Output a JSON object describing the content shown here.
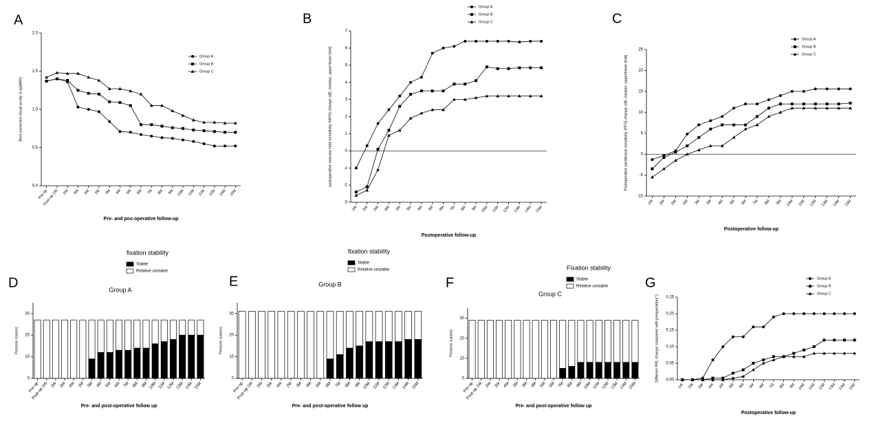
{
  "chart_data": [
    {
      "panel": "A",
      "type": "line",
      "xlabel": "Pre- and pos-operative follow-up",
      "ylabel": "Best corrected visual acuity (LogMAR)",
      "categories": [
        "Pre-op",
        "Post-op 1W",
        "2W",
        "3W",
        "4W",
        "2M",
        "3M",
        "4M",
        "5M",
        "6M",
        "7M",
        "8M",
        "9M",
        "10M",
        "11M",
        "12M",
        "13M",
        "14M",
        "15M"
      ],
      "series": [
        {
          "name": "Group A",
          "color": "#000000",
          "marker": "circle",
          "values": [
            1.37,
            1.4,
            1.36,
            1.03,
            1.0,
            0.97,
            0.84,
            0.71,
            0.7,
            0.67,
            0.65,
            0.63,
            0.62,
            0.6,
            0.58,
            0.55,
            0.52,
            0.52,
            0.52
          ]
        },
        {
          "name": "Group B",
          "color": "#000000",
          "marker": "square",
          "values": [
            1.37,
            1.4,
            1.38,
            1.25,
            1.21,
            1.2,
            1.1,
            1.09,
            1.05,
            0.8,
            0.8,
            0.78,
            0.76,
            0.75,
            0.73,
            0.72,
            0.71,
            0.7,
            0.7
          ]
        },
        {
          "name": "Group C",
          "color": "#000000",
          "marker": "triangle",
          "values": [
            1.42,
            1.48,
            1.47,
            1.47,
            1.42,
            1.38,
            1.27,
            1.27,
            1.24,
            1.2,
            1.05,
            1.05,
            0.98,
            0.92,
            0.86,
            0.83,
            0.83,
            0.82,
            0.82
          ]
        }
      ],
      "ylim": [
        0,
        2
      ],
      "yticks": [
        {
          "value": 0,
          "label": "0.0"
        },
        0.5,
        {
          "value": 1,
          "label": "1.0"
        },
        1.5,
        {
          "value": 2,
          "label": "2.0"
        }
      ]
    },
    {
      "panel": "B",
      "type": "line",
      "xlabel": "Postoperative follow-up",
      "ylabel": "postoperative macular hole sensitivity (MHS) change (dB, median, upper/lower limit)",
      "categories": [
        "1W",
        "2W",
        "3W",
        "4W",
        "2M",
        "3M",
        "4M",
        "5M",
        "6M",
        "7M",
        "8M",
        "9M",
        "10M",
        "11M",
        "12M",
        "13M",
        "14M",
        "15M"
      ],
      "series": [
        {
          "name": "Group A",
          "color": "#000000",
          "marker": "circle",
          "values": [
            -1.0,
            0.3,
            1.6,
            2.4,
            3.2,
            4.0,
            4.3,
            5.7,
            6.0,
            6.1,
            6.4,
            6.4,
            6.4,
            6.4,
            6.4,
            6.35,
            6.4,
            6.4
          ]
        },
        {
          "name": "Group B",
          "color": "#000000",
          "marker": "square",
          "values": [
            -2.4,
            -2.1,
            0.1,
            1.2,
            2.6,
            3.3,
            3.5,
            3.5,
            3.5,
            3.9,
            3.9,
            4.1,
            4.9,
            4.8,
            4.8,
            4.85,
            4.85,
            4.85
          ]
        },
        {
          "name": "Group C",
          "color": "#000000",
          "marker": "triangle",
          "values": [
            -2.6,
            -2.3,
            -1.1,
            0.9,
            1.2,
            1.9,
            2.2,
            2.4,
            2.4,
            3.0,
            3.0,
            3.1,
            3.2,
            3.2,
            3.2,
            3.2,
            3.2,
            3.2
          ]
        }
      ],
      "ylim": [
        -3,
        7
      ],
      "yticks": [
        -3,
        -2,
        -1,
        0,
        1,
        2,
        3,
        4,
        5,
        6,
        7
      ]
    },
    {
      "panel": "C",
      "type": "line",
      "xlabel": "Postoperative follow-up",
      "ylabel": "Postoperative parafoveal sensitivity (PFS) change (dB, median, upper/lower limit)",
      "categories": [
        "1W",
        "2W",
        "3W",
        "4W",
        "2M",
        "3M",
        "4M",
        "5M",
        "6M",
        "7M",
        "8M",
        "9M",
        "10M",
        "11M",
        "12M",
        "13M",
        "14M",
        "15M"
      ],
      "series": [
        {
          "name": "Group A",
          "color": "#000000",
          "marker": "circle",
          "values": [
            -1.3,
            -0.3,
            0.8,
            4.8,
            7.0,
            8.0,
            9.0,
            11.0,
            12.0,
            12.0,
            13.0,
            14.0,
            15.0,
            15.0,
            15.6,
            15.6,
            15.6,
            15.6
          ]
        },
        {
          "name": "Group B",
          "color": "#000000",
          "marker": "square",
          "values": [
            -3.5,
            -0.8,
            0.5,
            2.0,
            4.0,
            6.0,
            7.0,
            7.0,
            7.0,
            9.0,
            11.0,
            12.0,
            12.0,
            12.0,
            12.0,
            12.0,
            12.0,
            12.2
          ]
        },
        {
          "name": "Group C",
          "color": "#000000",
          "marker": "triangle",
          "values": [
            -5.5,
            -3.5,
            -1.5,
            0,
            1,
            2,
            2,
            4,
            6,
            7,
            9,
            10,
            11,
            11,
            11,
            11,
            11,
            11
          ]
        }
      ],
      "ylim": [
        -10,
        25
      ],
      "yticks": [
        -10,
        -5,
        0,
        5,
        10,
        15,
        20,
        25
      ]
    },
    {
      "panel": "D",
      "type": "bar",
      "stacked": true,
      "title": "Group A",
      "legend_title": "fixation stability",
      "xlabel": "Pre- and post-operative follow up",
      "ylabel": "Persons (cases)",
      "categories": [
        "Pre-op",
        "Post-op 1W",
        "2W",
        "3W",
        "4W",
        "2M",
        "3M",
        "4M",
        "5M",
        "6M",
        "7M",
        "8M",
        "9M",
        "10M",
        "11M",
        "12M",
        "13M",
        "14M",
        "15M"
      ],
      "series": [
        {
          "name": "Stable",
          "color": "#000000",
          "values": [
            0,
            0,
            0,
            0,
            0,
            0,
            9,
            12,
            12,
            13,
            13,
            14,
            14,
            16,
            17,
            18,
            20,
            20,
            20
          ]
        },
        {
          "name": "Relative unstable",
          "color": "#ffffff",
          "values": [
            27,
            27,
            27,
            27,
            27,
            27,
            18,
            15,
            15,
            14,
            14,
            13,
            13,
            11,
            10,
            9,
            7,
            7,
            7
          ]
        }
      ],
      "ylim": [
        0,
        35
      ],
      "yticks": [
        0,
        10,
        20,
        30
      ]
    },
    {
      "panel": "E",
      "type": "bar",
      "stacked": true,
      "title": "Group B",
      "legend_title": "fixation stability",
      "xlabel": "Pre- and post-operative follow up",
      "ylabel": "Persons (cases)",
      "categories": [
        "Pre-op",
        "Post-op 1W",
        "2W",
        "3W",
        "4W",
        "2M",
        "3M",
        "4M",
        "5M",
        "6M",
        "7M",
        "8M",
        "9M",
        "10M",
        "11M",
        "12M",
        "13M",
        "14M",
        "15M"
      ],
      "series": [
        {
          "name": "Stable",
          "color": "#000000",
          "values": [
            0,
            0,
            0,
            0,
            0,
            0,
            0,
            0,
            0,
            9,
            11,
            14,
            15,
            17,
            17,
            17,
            17,
            18,
            18
          ]
        },
        {
          "name": "Relative unstable",
          "color": "#ffffff",
          "values": [
            31,
            31,
            31,
            31,
            31,
            31,
            31,
            31,
            31,
            22,
            20,
            17,
            16,
            14,
            14,
            14,
            14,
            13,
            13
          ]
        }
      ],
      "ylim": [
        0,
        35
      ],
      "yticks": [
        0,
        10,
        20,
        30
      ]
    },
    {
      "panel": "F",
      "type": "bar",
      "stacked": true,
      "title": "Group C",
      "legend_title": "Fixation stability",
      "xlabel": "Pre- and post-operative follow up",
      "ylabel": "Persons (cases)",
      "categories": [
        "Pre-op",
        "Post-op 1W",
        "2W",
        "3W",
        "4W",
        "2M",
        "3M",
        "4M",
        "5M",
        "6M",
        "7M",
        "8M",
        "9M",
        "10M",
        "11M",
        "12M",
        "13M",
        "14M",
        "15M"
      ],
      "series": [
        {
          "name": "Stable",
          "color": "#000000",
          "values": [
            0,
            0,
            0,
            0,
            0,
            0,
            0,
            0,
            0,
            0,
            5,
            6,
            8,
            8,
            8,
            8,
            8,
            8,
            8
          ]
        },
        {
          "name": "Relative unstable",
          "color": "#ffffff",
          "values": [
            29,
            29,
            29,
            29,
            29,
            29,
            29,
            29,
            29,
            29,
            24,
            23,
            21,
            21,
            21,
            21,
            21,
            21,
            21
          ]
        }
      ],
      "ylim": [
        0,
        35
      ],
      "yticks": [
        0,
        10,
        20,
        30
      ]
    },
    {
      "panel": "G",
      "type": "line",
      "xlabel": "Postoperative follow-up",
      "ylabel": "Different PRL change compared with preoperation(°)",
      "categories": [
        "1W",
        "2W",
        "3W",
        "4W",
        "2M",
        "3M",
        "4M",
        "5M",
        "6M",
        "7M",
        "8M",
        "9M",
        "10M",
        "11M",
        "12M",
        "13M",
        "14M",
        "15M"
      ],
      "series": [
        {
          "name": "Group A",
          "color": "#000000",
          "marker": "circle",
          "values": [
            0,
            0,
            0.005,
            0.06,
            0.1,
            0.13,
            0.13,
            0.16,
            0.16,
            0.19,
            0.2,
            0.2,
            0.2,
            0.2,
            0.2,
            0.2,
            0.2,
            0.2
          ]
        },
        {
          "name": "Group B",
          "color": "#000000",
          "marker": "square",
          "values": [
            0,
            0,
            0,
            0.005,
            0.005,
            0.02,
            0.03,
            0.05,
            0.06,
            0.07,
            0.07,
            0.08,
            0.09,
            0.1,
            0.12,
            0.12,
            0.12,
            0.12
          ]
        },
        {
          "name": "Group C",
          "color": "#000000",
          "marker": "triangle",
          "values": [
            0,
            0,
            0,
            0,
            0,
            0.005,
            0.01,
            0.03,
            0.05,
            0.06,
            0.07,
            0.07,
            0.07,
            0.08,
            0.08,
            0.08,
            0.08,
            0.08
          ]
        }
      ],
      "ylim": [
        0,
        0.25
      ],
      "yticks": [
        {
          "value": 0,
          "label": "0.00"
        },
        {
          "value": 0.05,
          "label": "0.05"
        },
        {
          "value": 0.1,
          "label": "0.10"
        },
        {
          "value": 0.15,
          "label": "0.15"
        },
        {
          "value": 0.2,
          "label": "0.20"
        },
        {
          "value": 0.25,
          "label": "0.25"
        }
      ]
    }
  ]
}
